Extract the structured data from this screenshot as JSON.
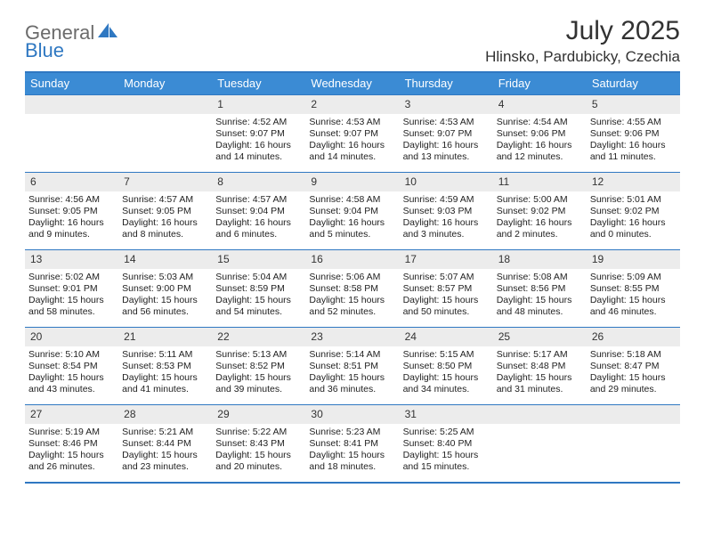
{
  "brand": {
    "general": "General",
    "blue": "Blue"
  },
  "title": "July 2025",
  "location": "Hlinsko, Pardubicky, Czechia",
  "colors": {
    "header_bg": "#3b8bd4",
    "border": "#2f78c2",
    "daynum_bg": "#ececec",
    "text": "#222222",
    "logo_gray": "#6b6b6b",
    "logo_blue": "#2f78c2"
  },
  "weekdays": [
    "Sunday",
    "Monday",
    "Tuesday",
    "Wednesday",
    "Thursday",
    "Friday",
    "Saturday"
  ],
  "weeks": [
    [
      null,
      null,
      {
        "n": "1",
        "sr": "4:52 AM",
        "ss": "9:07 PM",
        "dl": "16 hours and 14 minutes."
      },
      {
        "n": "2",
        "sr": "4:53 AM",
        "ss": "9:07 PM",
        "dl": "16 hours and 14 minutes."
      },
      {
        "n": "3",
        "sr": "4:53 AM",
        "ss": "9:07 PM",
        "dl": "16 hours and 13 minutes."
      },
      {
        "n": "4",
        "sr": "4:54 AM",
        "ss": "9:06 PM",
        "dl": "16 hours and 12 minutes."
      },
      {
        "n": "5",
        "sr": "4:55 AM",
        "ss": "9:06 PM",
        "dl": "16 hours and 11 minutes."
      }
    ],
    [
      {
        "n": "6",
        "sr": "4:56 AM",
        "ss": "9:05 PM",
        "dl": "16 hours and 9 minutes."
      },
      {
        "n": "7",
        "sr": "4:57 AM",
        "ss": "9:05 PM",
        "dl": "16 hours and 8 minutes."
      },
      {
        "n": "8",
        "sr": "4:57 AM",
        "ss": "9:04 PM",
        "dl": "16 hours and 6 minutes."
      },
      {
        "n": "9",
        "sr": "4:58 AM",
        "ss": "9:04 PM",
        "dl": "16 hours and 5 minutes."
      },
      {
        "n": "10",
        "sr": "4:59 AM",
        "ss": "9:03 PM",
        "dl": "16 hours and 3 minutes."
      },
      {
        "n": "11",
        "sr": "5:00 AM",
        "ss": "9:02 PM",
        "dl": "16 hours and 2 minutes."
      },
      {
        "n": "12",
        "sr": "5:01 AM",
        "ss": "9:02 PM",
        "dl": "16 hours and 0 minutes."
      }
    ],
    [
      {
        "n": "13",
        "sr": "5:02 AM",
        "ss": "9:01 PM",
        "dl": "15 hours and 58 minutes."
      },
      {
        "n": "14",
        "sr": "5:03 AM",
        "ss": "9:00 PM",
        "dl": "15 hours and 56 minutes."
      },
      {
        "n": "15",
        "sr": "5:04 AM",
        "ss": "8:59 PM",
        "dl": "15 hours and 54 minutes."
      },
      {
        "n": "16",
        "sr": "5:06 AM",
        "ss": "8:58 PM",
        "dl": "15 hours and 52 minutes."
      },
      {
        "n": "17",
        "sr": "5:07 AM",
        "ss": "8:57 PM",
        "dl": "15 hours and 50 minutes."
      },
      {
        "n": "18",
        "sr": "5:08 AM",
        "ss": "8:56 PM",
        "dl": "15 hours and 48 minutes."
      },
      {
        "n": "19",
        "sr": "5:09 AM",
        "ss": "8:55 PM",
        "dl": "15 hours and 46 minutes."
      }
    ],
    [
      {
        "n": "20",
        "sr": "5:10 AM",
        "ss": "8:54 PM",
        "dl": "15 hours and 43 minutes."
      },
      {
        "n": "21",
        "sr": "5:11 AM",
        "ss": "8:53 PM",
        "dl": "15 hours and 41 minutes."
      },
      {
        "n": "22",
        "sr": "5:13 AM",
        "ss": "8:52 PM",
        "dl": "15 hours and 39 minutes."
      },
      {
        "n": "23",
        "sr": "5:14 AM",
        "ss": "8:51 PM",
        "dl": "15 hours and 36 minutes."
      },
      {
        "n": "24",
        "sr": "5:15 AM",
        "ss": "8:50 PM",
        "dl": "15 hours and 34 minutes."
      },
      {
        "n": "25",
        "sr": "5:17 AM",
        "ss": "8:48 PM",
        "dl": "15 hours and 31 minutes."
      },
      {
        "n": "26",
        "sr": "5:18 AM",
        "ss": "8:47 PM",
        "dl": "15 hours and 29 minutes."
      }
    ],
    [
      {
        "n": "27",
        "sr": "5:19 AM",
        "ss": "8:46 PM",
        "dl": "15 hours and 26 minutes."
      },
      {
        "n": "28",
        "sr": "5:21 AM",
        "ss": "8:44 PM",
        "dl": "15 hours and 23 minutes."
      },
      {
        "n": "29",
        "sr": "5:22 AM",
        "ss": "8:43 PM",
        "dl": "15 hours and 20 minutes."
      },
      {
        "n": "30",
        "sr": "5:23 AM",
        "ss": "8:41 PM",
        "dl": "15 hours and 18 minutes."
      },
      {
        "n": "31",
        "sr": "5:25 AM",
        "ss": "8:40 PM",
        "dl": "15 hours and 15 minutes."
      },
      null,
      null
    ]
  ],
  "labels": {
    "sunrise": "Sunrise: ",
    "sunset": "Sunset: ",
    "daylight": "Daylight: "
  }
}
